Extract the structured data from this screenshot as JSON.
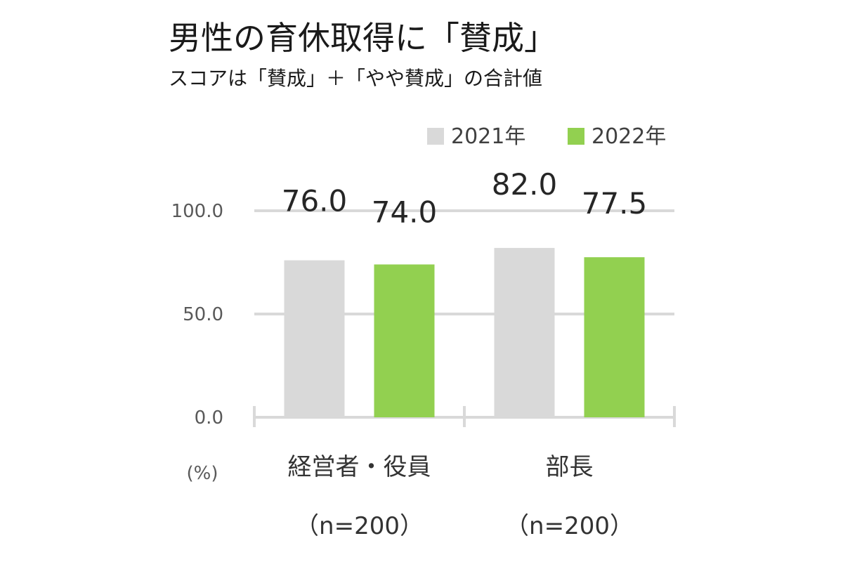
{
  "title": "男性の育休取得に「賛成」",
  "subtitle": "スコアは「賛成」＋「やや賛成」の合計値",
  "unit": "(%)",
  "colors": {
    "2021年": "#d9d9d9",
    "2022年": "#92d050",
    "grid": "#d9d9d9",
    "axis": "#d9d9d9"
  },
  "chart_data": {
    "type": "bar",
    "categories": [
      "経営者・役員",
      "部長"
    ],
    "category_notes": [
      "（n=200）",
      "（n=200）"
    ],
    "series": [
      {
        "name": "2021年",
        "values": [
          76.0,
          82.0
        ],
        "labels": [
          "76.0",
          "82.0"
        ]
      },
      {
        "name": "2022年",
        "values": [
          74.0,
          77.5
        ],
        "labels": [
          "74.0",
          "77.5"
        ]
      }
    ],
    "yticks": [
      "0.0",
      "50.0",
      "100.0"
    ],
    "ylim": [
      0,
      100
    ],
    "grid": true,
    "legend": "top-right"
  }
}
